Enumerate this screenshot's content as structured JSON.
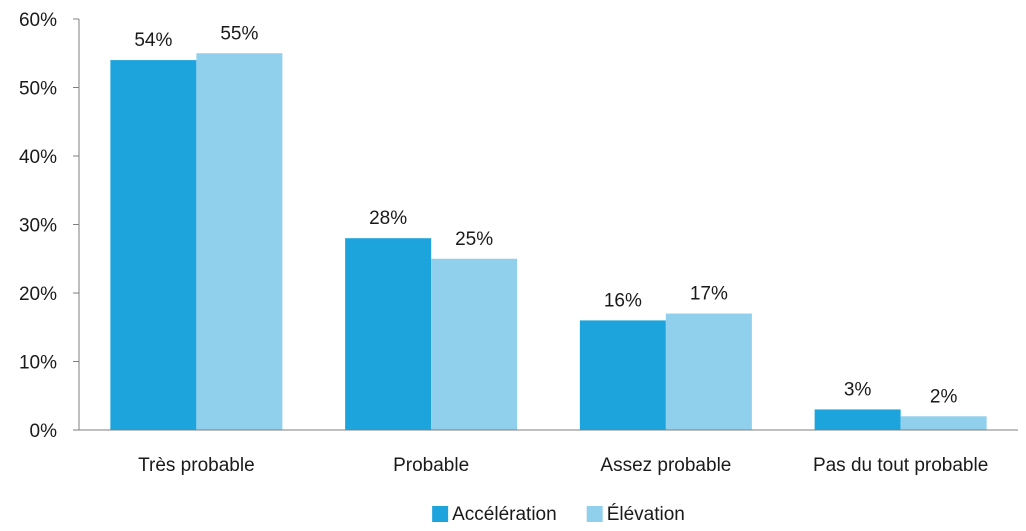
{
  "chart_data": {
    "type": "bar",
    "categories": [
      "Très probable",
      "Probable",
      "Assez probable",
      "Pas du tout probable"
    ],
    "series": [
      {
        "name": "Accélération",
        "values": [
          54,
          28,
          16,
          3
        ],
        "labels": [
          "54%",
          "28%",
          "16%",
          "3%"
        ],
        "color": "#1ea4dc"
      },
      {
        "name": "Élévation",
        "values": [
          55,
          25,
          17,
          2
        ],
        "labels": [
          "55%",
          "25%",
          "17%",
          "2%"
        ],
        "color": "#90d0ec"
      }
    ],
    "yticks": [
      0,
      10,
      20,
      30,
      40,
      50,
      60
    ],
    "ytick_labels": [
      "0%",
      "10%",
      "20%",
      "30%",
      "40%",
      "50%",
      "60%"
    ],
    "ylim": [
      0,
      60
    ],
    "grid": false,
    "legend_position": "bottom-center",
    "axis_color": "#7f7f7f"
  }
}
